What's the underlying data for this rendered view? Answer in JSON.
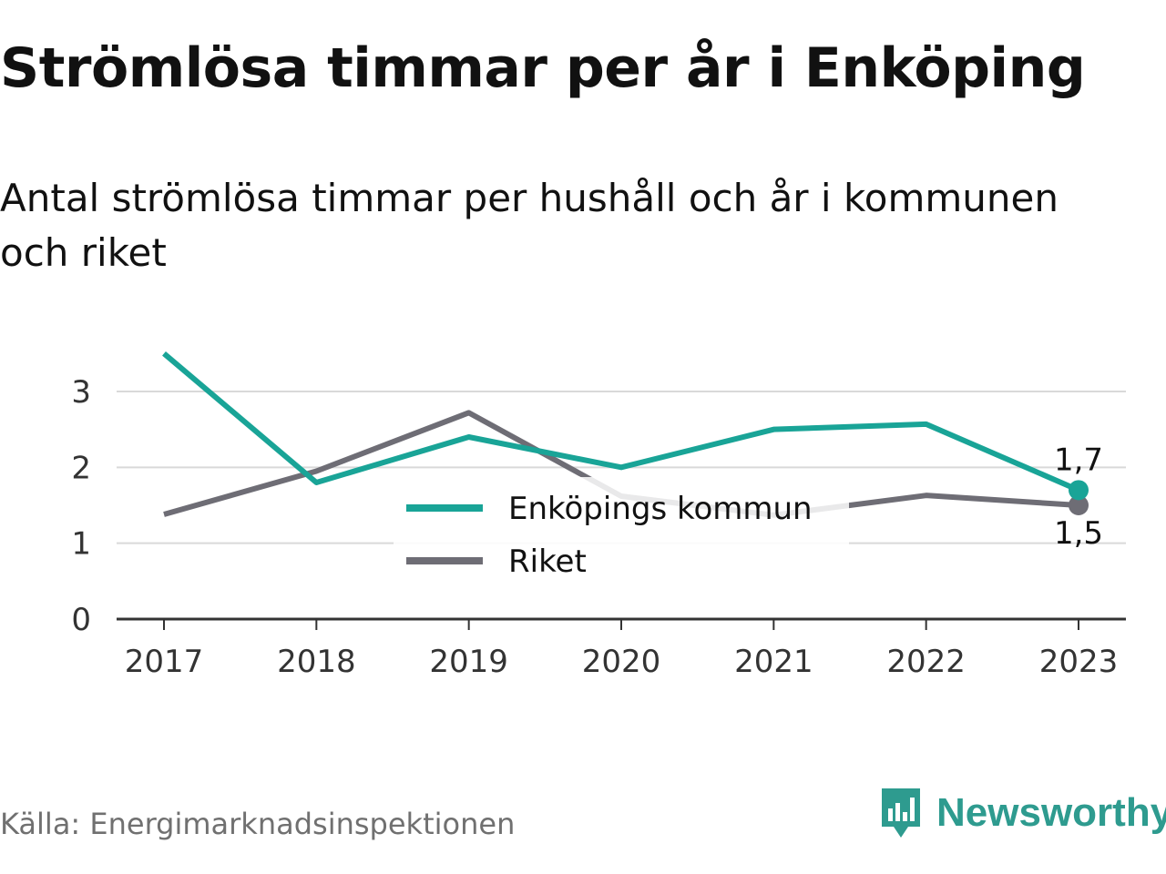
{
  "title": "Strömlösa timmar per år i Enköping",
  "subtitle": "Antal strömlösa timmar per hushåll och år i kommunen och riket",
  "source": "Källa: Energimarknadsinspektionen",
  "brand": {
    "name": "Newsworthy",
    "color": "#2e9b8f",
    "icon": "bar-chart-speech-bubble-icon"
  },
  "chart_data": {
    "type": "line",
    "x": [
      "2017",
      "2018",
      "2019",
      "2020",
      "2021",
      "2022",
      "2023"
    ],
    "ylim": [
      0,
      3.6
    ],
    "yticks": [
      0,
      1,
      2,
      3
    ],
    "grid": true,
    "legend_position": "center",
    "series": [
      {
        "name": "Enköpings kommun",
        "color": "#19a497",
        "values": [
          3.5,
          1.8,
          2.4,
          2.0,
          2.5,
          2.57,
          1.7
        ],
        "end_label": "1,7"
      },
      {
        "name": "Riket",
        "color": "#6e6d75",
        "values": [
          1.38,
          1.95,
          2.72,
          1.62,
          1.37,
          1.63,
          1.5
        ],
        "end_label": "1,5"
      }
    ]
  }
}
